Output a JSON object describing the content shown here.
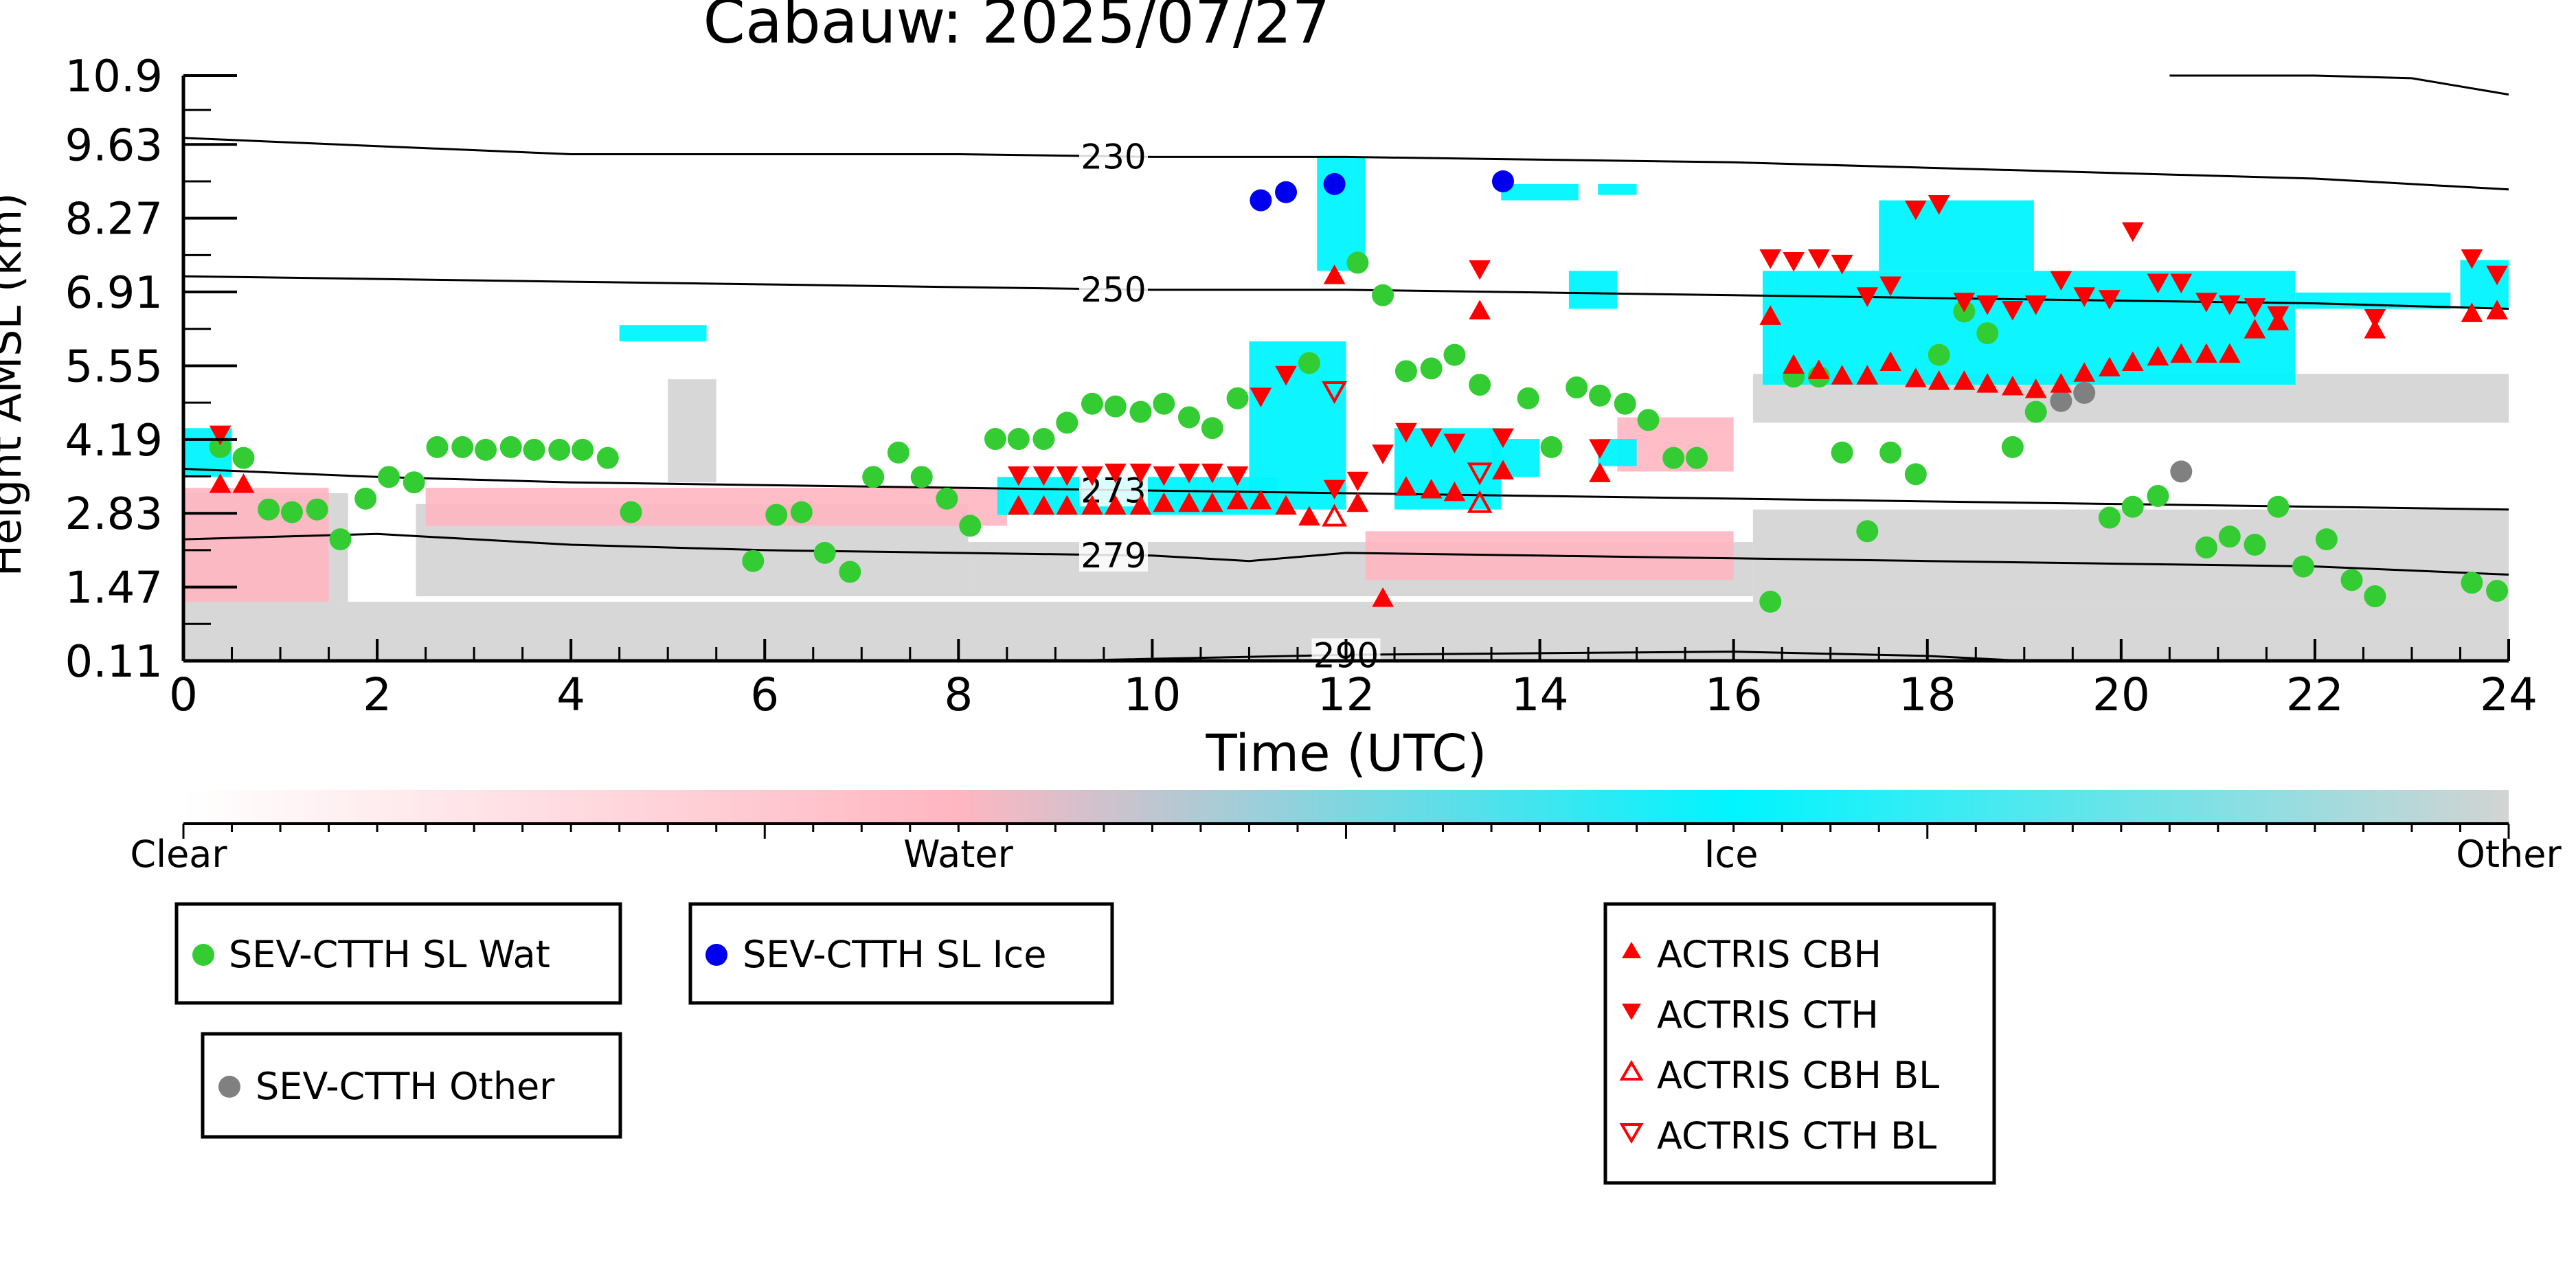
{
  "chart_data": {
    "type": "scatter",
    "title": "Cabauw: 2025/07/27",
    "xlabel": "Time (UTC)",
    "ylabel": "Height AMSL (km)",
    "xlim": [
      0,
      24
    ],
    "ylim": [
      0.11,
      10.9
    ],
    "x_ticks": [
      0,
      2,
      4,
      6,
      8,
      10,
      12,
      14,
      16,
      18,
      20,
      22,
      24
    ],
    "y_ticks": [
      0.11,
      1.47,
      2.83,
      4.19,
      5.55,
      6.91,
      8.27,
      9.63,
      10.9
    ],
    "y_tick_labels": [
      "0.11",
      "1.47",
      "2.83",
      "4.19",
      "5.55",
      "6.91",
      "8.27",
      "9.63",
      "10.9"
    ],
    "background_classes": {
      "colorbar_labels": [
        "Clear",
        "Water",
        "Ice",
        "Other"
      ],
      "colors": {
        "clear": "#ffffff",
        "water": "#ffb6c1",
        "ice": "#00f5ff",
        "other": "#d3d3d3"
      }
    },
    "contours": [
      {
        "label": "230",
        "x": [
          0,
          2,
          4,
          6,
          8,
          10,
          12,
          14,
          16,
          18,
          20,
          22,
          24
        ],
        "y": [
          9.75,
          9.6,
          9.45,
          9.45,
          9.45,
          9.4,
          9.4,
          9.35,
          9.3,
          9.2,
          9.1,
          9.0,
          8.8
        ]
      },
      {
        "label": "250",
        "x": [
          0,
          2,
          4,
          6,
          8,
          10,
          12,
          14,
          16,
          18,
          20,
          22,
          24
        ],
        "y": [
          7.2,
          7.15,
          7.1,
          7.05,
          7.0,
          6.95,
          6.95,
          6.9,
          6.85,
          6.8,
          6.75,
          6.7,
          6.6
        ]
      },
      {
        "label": "273",
        "x": [
          0,
          2,
          4,
          6,
          8,
          10,
          12,
          14,
          16,
          18,
          20,
          22,
          24
        ],
        "y": [
          3.65,
          3.5,
          3.4,
          3.35,
          3.3,
          3.25,
          3.2,
          3.15,
          3.1,
          3.05,
          3.0,
          2.95,
          2.9
        ]
      },
      {
        "label": "279",
        "x": [
          0,
          2,
          4,
          6,
          8,
          10,
          11,
          12,
          14,
          16,
          18,
          20,
          22,
          24
        ],
        "y": [
          2.35,
          2.45,
          2.25,
          2.15,
          2.1,
          2.05,
          1.95,
          2.1,
          2.05,
          2.0,
          1.95,
          1.9,
          1.85,
          1.7
        ]
      },
      {
        "label": "290",
        "x": [
          9,
          12,
          14,
          16,
          18,
          19
        ],
        "y": [
          0.11,
          0.22,
          0.25,
          0.28,
          0.2,
          0.11
        ]
      },
      {
        "label": "",
        "x": [
          20.5,
          22,
          23,
          24
        ],
        "y": [
          10.9,
          10.9,
          10.85,
          10.55
        ]
      }
    ],
    "series": [
      {
        "name": "SEV-CTTH SL Wat",
        "marker": "circle",
        "color": "#33cc33",
        "points": [
          [
            0.38,
            4.05
          ],
          [
            0.62,
            3.85
          ],
          [
            0.88,
            2.9
          ],
          [
            1.12,
            2.85
          ],
          [
            1.38,
            2.9
          ],
          [
            1.62,
            2.35
          ],
          [
            1.88,
            3.1
          ],
          [
            2.12,
            3.5
          ],
          [
            2.38,
            3.4
          ],
          [
            2.62,
            4.05
          ],
          [
            2.88,
            4.05
          ],
          [
            3.12,
            4.0
          ],
          [
            3.38,
            4.05
          ],
          [
            3.62,
            4.0
          ],
          [
            3.88,
            4.0
          ],
          [
            4.12,
            4.0
          ],
          [
            4.38,
            3.85
          ],
          [
            4.62,
            2.85
          ],
          [
            5.88,
            1.95
          ],
          [
            6.12,
            2.8
          ],
          [
            6.38,
            2.85
          ],
          [
            6.62,
            2.1
          ],
          [
            6.88,
            1.75
          ],
          [
            7.12,
            3.5
          ],
          [
            7.38,
            3.95
          ],
          [
            7.62,
            3.5
          ],
          [
            7.88,
            3.1
          ],
          [
            8.12,
            2.6
          ],
          [
            8.38,
            4.2
          ],
          [
            8.62,
            4.2
          ],
          [
            8.88,
            4.2
          ],
          [
            9.12,
            4.5
          ],
          [
            9.38,
            4.85
          ],
          [
            9.62,
            4.8
          ],
          [
            9.88,
            4.7
          ],
          [
            10.12,
            4.85
          ],
          [
            10.38,
            4.6
          ],
          [
            10.62,
            4.4
          ],
          [
            10.88,
            4.95
          ],
          [
            11.62,
            5.6
          ],
          [
            12.12,
            7.45
          ],
          [
            12.38,
            6.85
          ],
          [
            12.62,
            5.45
          ],
          [
            12.88,
            5.5
          ],
          [
            13.12,
            5.75
          ],
          [
            13.38,
            5.2
          ],
          [
            13.88,
            4.95
          ],
          [
            14.12,
            4.05
          ],
          [
            14.38,
            5.15
          ],
          [
            14.62,
            5.0
          ],
          [
            14.88,
            4.85
          ],
          [
            15.12,
            4.55
          ],
          [
            15.38,
            3.85
          ],
          [
            15.62,
            3.85
          ],
          [
            16.38,
            1.2
          ],
          [
            16.62,
            5.35
          ],
          [
            16.88,
            5.35
          ],
          [
            17.12,
            3.95
          ],
          [
            17.38,
            2.5
          ],
          [
            17.62,
            3.95
          ],
          [
            17.88,
            3.55
          ],
          [
            18.12,
            5.75
          ],
          [
            18.38,
            6.55
          ],
          [
            18.62,
            6.15
          ],
          [
            18.88,
            4.05
          ],
          [
            19.12,
            4.7
          ],
          [
            20.12,
            2.95
          ],
          [
            19.88,
            2.75
          ],
          [
            20.38,
            3.15
          ],
          [
            20.88,
            2.2
          ],
          [
            21.12,
            2.4
          ],
          [
            21.38,
            2.25
          ],
          [
            21.62,
            2.95
          ],
          [
            21.88,
            1.85
          ],
          [
            22.12,
            2.35
          ],
          [
            22.38,
            1.6
          ],
          [
            22.62,
            1.3
          ],
          [
            23.62,
            1.55
          ],
          [
            23.88,
            1.4
          ]
        ]
      },
      {
        "name": "SEV-CTTH SL Ice",
        "marker": "circle",
        "color": "#0000ee",
        "points": [
          [
            11.12,
            8.6
          ],
          [
            11.38,
            8.75
          ],
          [
            11.88,
            8.9
          ],
          [
            13.62,
            8.95
          ]
        ]
      },
      {
        "name": "SEV-CTTH Other",
        "marker": "circle",
        "color": "#808080",
        "points": [
          [
            19.38,
            4.9
          ],
          [
            19.62,
            5.05
          ],
          [
            20.62,
            3.6
          ]
        ]
      },
      {
        "name": "ACTRIS CBH",
        "marker": "triangle-up",
        "color": "#ff0000",
        "points": [
          [
            0.38,
            3.35
          ],
          [
            0.62,
            3.35
          ],
          [
            8.62,
            2.95
          ],
          [
            8.88,
            2.95
          ],
          [
            9.12,
            2.95
          ],
          [
            9.38,
            2.95
          ],
          [
            9.62,
            2.95
          ],
          [
            9.88,
            2.95
          ],
          [
            10.12,
            3.0
          ],
          [
            10.38,
            3.0
          ],
          [
            10.62,
            3.0
          ],
          [
            10.88,
            3.05
          ],
          [
            11.12,
            3.05
          ],
          [
            11.38,
            2.95
          ],
          [
            11.62,
            2.75
          ],
          [
            11.88,
            7.2
          ],
          [
            12.12,
            3.0
          ],
          [
            12.38,
            1.25
          ],
          [
            12.62,
            3.3
          ],
          [
            12.88,
            3.25
          ],
          [
            13.12,
            3.2
          ],
          [
            13.38,
            6.55
          ],
          [
            13.62,
            3.6
          ],
          [
            14.62,
            3.55
          ],
          [
            16.38,
            6.45
          ],
          [
            16.62,
            5.55
          ],
          [
            16.88,
            5.45
          ],
          [
            17.12,
            5.35
          ],
          [
            17.38,
            5.35
          ],
          [
            17.62,
            5.6
          ],
          [
            17.88,
            5.3
          ],
          [
            18.12,
            5.25
          ],
          [
            18.38,
            5.25
          ],
          [
            18.62,
            5.2
          ],
          [
            18.88,
            5.15
          ],
          [
            19.12,
            5.1
          ],
          [
            19.38,
            5.2
          ],
          [
            19.62,
            5.4
          ],
          [
            19.88,
            5.5
          ],
          [
            20.12,
            5.6
          ],
          [
            20.38,
            5.7
          ],
          [
            20.62,
            5.75
          ],
          [
            20.88,
            5.75
          ],
          [
            21.12,
            5.75
          ],
          [
            21.38,
            6.2
          ],
          [
            21.62,
            6.35
          ],
          [
            22.62,
            6.2
          ],
          [
            23.62,
            6.5
          ],
          [
            23.88,
            6.55
          ]
        ]
      },
      {
        "name": "ACTRIS CTH",
        "marker": "triangle-down",
        "color": "#ff0000",
        "points": [
          [
            0.38,
            4.3
          ],
          [
            8.62,
            3.55
          ],
          [
            8.88,
            3.55
          ],
          [
            9.12,
            3.55
          ],
          [
            9.38,
            3.55
          ],
          [
            9.62,
            3.6
          ],
          [
            9.88,
            3.6
          ],
          [
            10.12,
            3.55
          ],
          [
            10.38,
            3.6
          ],
          [
            10.62,
            3.6
          ],
          [
            10.88,
            3.55
          ],
          [
            11.12,
            5.0
          ],
          [
            11.38,
            5.4
          ],
          [
            11.88,
            3.3
          ],
          [
            12.12,
            3.45
          ],
          [
            12.38,
            3.95
          ],
          [
            12.62,
            4.35
          ],
          [
            12.88,
            4.25
          ],
          [
            13.12,
            4.15
          ],
          [
            13.38,
            7.35
          ],
          [
            13.62,
            4.25
          ],
          [
            14.62,
            4.05
          ],
          [
            16.38,
            7.55
          ],
          [
            16.62,
            7.5
          ],
          [
            16.88,
            7.55
          ],
          [
            17.12,
            7.45
          ],
          [
            17.38,
            6.85
          ],
          [
            17.62,
            7.05
          ],
          [
            17.88,
            8.45
          ],
          [
            18.12,
            8.55
          ],
          [
            18.38,
            6.75
          ],
          [
            18.62,
            6.7
          ],
          [
            18.88,
            6.6
          ],
          [
            19.12,
            6.7
          ],
          [
            19.38,
            7.15
          ],
          [
            19.62,
            6.85
          ],
          [
            19.88,
            6.8
          ],
          [
            20.12,
            8.05
          ],
          [
            20.38,
            7.1
          ],
          [
            20.62,
            7.1
          ],
          [
            20.88,
            6.75
          ],
          [
            21.12,
            6.7
          ],
          [
            21.38,
            6.65
          ],
          [
            21.62,
            6.5
          ],
          [
            22.62,
            6.45
          ],
          [
            23.62,
            7.55
          ],
          [
            23.88,
            7.25
          ]
        ]
      },
      {
        "name": "ACTRIS CBH BL",
        "marker": "triangle-up-open",
        "color": "#ff0000",
        "points": [
          [
            11.88,
            2.75
          ],
          [
            13.38,
            3.0
          ]
        ]
      },
      {
        "name": "ACTRIS CTH BL",
        "marker": "triangle-down-open",
        "color": "#ff0000",
        "points": [
          [
            11.88,
            5.1
          ],
          [
            13.38,
            3.6
          ]
        ]
      }
    ]
  }
}
